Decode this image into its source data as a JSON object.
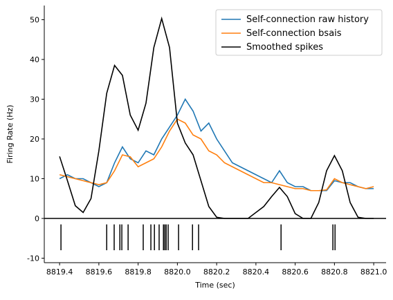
{
  "chart_data": {
    "type": "line",
    "xlabel": "Time (sec)",
    "ylabel": "Firing Rate (Hz)",
    "x": [
      8819.4,
      8819.44,
      8819.48,
      8819.52,
      8819.56,
      8819.6,
      8819.64,
      8819.68,
      8819.72,
      8819.76,
      8819.8,
      8819.84,
      8819.88,
      8819.92,
      8819.96,
      8820.0,
      8820.04,
      8820.08,
      8820.12,
      8820.16,
      8820.2,
      8820.24,
      8820.28,
      8820.32,
      8820.36,
      8820.4,
      8820.44,
      8820.48,
      8820.52,
      8820.56,
      8820.6,
      8820.64,
      8820.68,
      8820.72,
      8820.76,
      8820.8,
      8820.84,
      8820.88,
      8820.92,
      8820.96,
      8821.0
    ],
    "series": [
      {
        "name": "Self-connection raw history",
        "color": "#1f77b4",
        "values": [
          10,
          11,
          10,
          10,
          9,
          8,
          9,
          14,
          18,
          15,
          14,
          17,
          16,
          20,
          23,
          26,
          30,
          27,
          22,
          24,
          20,
          17,
          14,
          13,
          12,
          11,
          10,
          9,
          12,
          9,
          8,
          8,
          7,
          7,
          7,
          9.5,
          9,
          9,
          8,
          7.5,
          7.5
        ]
      },
      {
        "name": "Self-connection bsais",
        "color": "#ff7f0e",
        "values": [
          11,
          10.5,
          10,
          9.5,
          9,
          8.5,
          9,
          12,
          16,
          15.5,
          13,
          14,
          15,
          18,
          22,
          25,
          24,
          21,
          20,
          17,
          16,
          14,
          13,
          12,
          11,
          10,
          9,
          9,
          8.5,
          8,
          7.5,
          7.5,
          7,
          7,
          7.2,
          10,
          9,
          8.5,
          8,
          7.5,
          8
        ]
      },
      {
        "name": "Smoothed spikes",
        "color": "#000000",
        "values": [
          15.6,
          9.5,
          3.2,
          1.5,
          5,
          17,
          31.5,
          38.5,
          36,
          26,
          22.2,
          29,
          43,
          50.3,
          43,
          24,
          19,
          16,
          9.5,
          3,
          0.3,
          0,
          0,
          0,
          0,
          1.5,
          3,
          5.5,
          7.8,
          5.5,
          1.2,
          0,
          0,
          4,
          12,
          15.8,
          12,
          4,
          0.3,
          0,
          0
        ]
      }
    ],
    "spikes": [
      8819.407,
      8819.64,
      8819.678,
      8819.707,
      8819.717,
      8819.749,
      8819.826,
      8819.865,
      8819.883,
      8819.907,
      8819.929,
      8819.936,
      8819.943,
      8819.953,
      8820.006,
      8820.077,
      8820.108,
      8820.528,
      8820.792,
      8820.803
    ],
    "hline": 0,
    "xlim": [
      8819.322,
      8821.063
    ],
    "xticks": [
      8819.4,
      8819.6,
      8819.8,
      {
        "value": 8820,
        "label": "8820.0"
      },
      8820.2,
      8820.4,
      8820.6,
      8820.8,
      {
        "value": 8821,
        "label": "8821.0"
      }
    ],
    "ylim": [
      -11.13,
      53.57
    ],
    "yticks": [
      -10,
      0,
      10,
      20,
      30,
      40,
      50
    ],
    "legend": "upper right"
  }
}
